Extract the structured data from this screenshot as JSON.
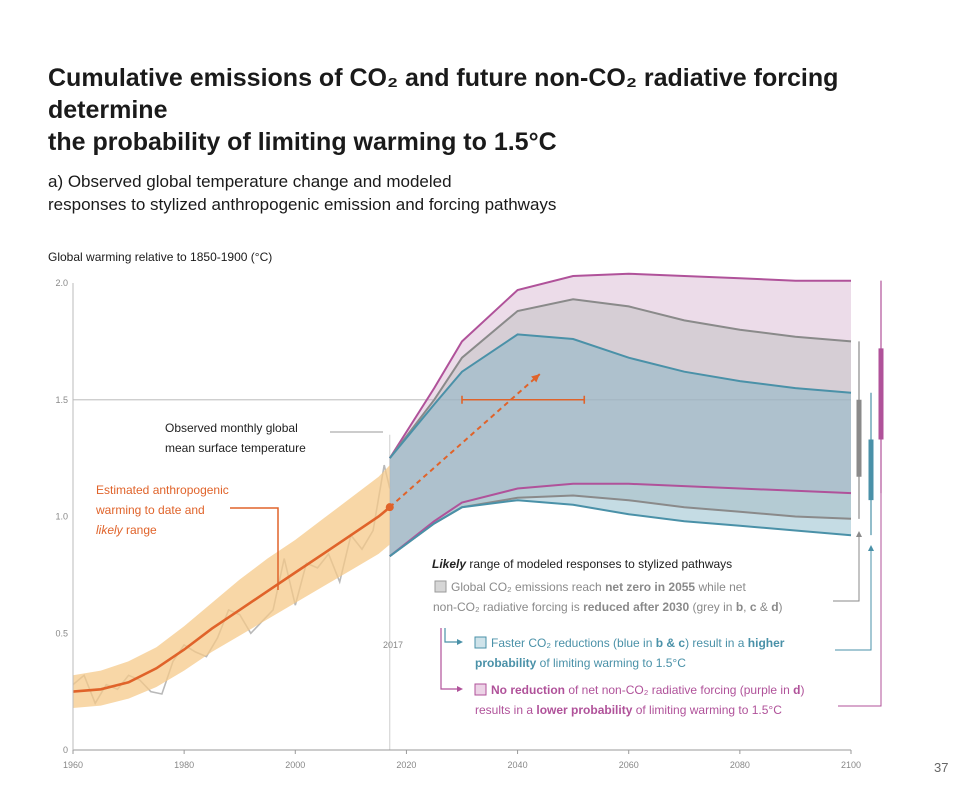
{
  "header": {
    "title_line1": "Cumulative emissions of CO₂ and future non-CO₂ radiative forcing determine",
    "title_line2": "the probability of limiting warming to 1.5°C",
    "subtitle_line1": "a) Observed global temperature change and modeled",
    "subtitle_line2": "responses to stylized anthropogenic emission and forcing pathways",
    "y_axis_title": "Global warming relative to 1850-1900 (°C)"
  },
  "page_number": "37",
  "colors": {
    "orange": "#e0632a",
    "orange_band": "#f6c98a",
    "observed": "#b9b9b9",
    "grey": "#8a8a8a",
    "blue": "#4a91a8",
    "purple": "#b0529a",
    "grey_fill": "#bdbdbd",
    "blue_fill": "#7fb2c4",
    "purple_fill": "#c89ac0"
  },
  "annotations": {
    "observed_line1": "Observed monthly global",
    "observed_line2": "mean surface temperature",
    "anthro_line1": "Estimated anthropogenic",
    "anthro_line2": "warming to date and",
    "anthro_line3_italic": "likely",
    "anthro_line3_rest": " range",
    "year_2017": "2017",
    "likely_range_italic": "Likely",
    "likely_range_rest": " range of modeled responses to stylized pathways",
    "grey_l1_a": "Global CO₂ emissions reach ",
    "grey_l1_b": "net zero in 2055",
    "grey_l1_c": " while net",
    "grey_l2_a": "non-CO₂ radiative forcing is ",
    "grey_l2_b": "reduced after 2030",
    "grey_l2_c": " (grey in ",
    "grey_l2_d": "b",
    "grey_l2_e": ", ",
    "grey_l2_f": "c",
    "grey_l2_g": " & ",
    "grey_l2_h": "d",
    "grey_l2_i": ")",
    "blue_l1_a": "Faster CO₂ reductions (blue in ",
    "blue_l1_b": "b & c",
    "blue_l1_c": ") result in a ",
    "blue_l1_d": "higher",
    "blue_l2_a": "probability",
    "blue_l2_b": " of limiting warming to 1.5°C",
    "purple_l1_a": "No reduction",
    "purple_l1_b": " of net non-CO₂ radiative forcing (purple in ",
    "purple_l1_c": "d",
    "purple_l1_d": ")",
    "purple_l2_a": "results in a ",
    "purple_l2_b": "lower probability",
    "purple_l2_c": " of limiting warming to 1.5°C"
  },
  "chart_data": {
    "type": "area",
    "title": "a) Observed global temperature change and modeled responses to stylized anthropogenic emission and forcing pathways",
    "ylabel": "Global warming relative to 1850-1900 (°C)",
    "xlabel": "",
    "xlim": [
      1960,
      2100
    ],
    "ylim": [
      0,
      2.0
    ],
    "x_ticks": [
      1960,
      1980,
      2000,
      2020,
      2040,
      2060,
      2080,
      2100
    ],
    "y_ticks": [
      0,
      0.5,
      1.0,
      1.5,
      2.0
    ],
    "y_tick_labels": [
      "0",
      "0.5",
      "1.0",
      "1.5",
      "2.0"
    ],
    "grid": false,
    "reference_line": 1.5,
    "marker_year": 2017,
    "series": [
      {
        "name": "Observed monthly global mean surface temperature",
        "kind": "observed",
        "x": [
          1960,
          1962,
          1964,
          1966,
          1968,
          1970,
          1972,
          1974,
          1976,
          1978,
          1980,
          1982,
          1984,
          1986,
          1988,
          1990,
          1992,
          1994,
          1996,
          1998,
          2000,
          2002,
          2004,
          2006,
          2008,
          2010,
          2012,
          2014,
          2016,
          2017
        ],
        "y": [
          0.28,
          0.32,
          0.2,
          0.28,
          0.26,
          0.32,
          0.3,
          0.25,
          0.24,
          0.38,
          0.45,
          0.42,
          0.4,
          0.48,
          0.6,
          0.58,
          0.5,
          0.55,
          0.6,
          0.82,
          0.62,
          0.8,
          0.78,
          0.84,
          0.72,
          0.92,
          0.86,
          0.94,
          1.22,
          1.12
        ]
      },
      {
        "name": "Estimated anthropogenic warming to date and likely range",
        "kind": "anthropogenic",
        "x": [
          1960,
          1965,
          1970,
          1975,
          1980,
          1985,
          1990,
          1995,
          2000,
          2005,
          2010,
          2015,
          2017
        ],
        "y": [
          0.25,
          0.26,
          0.29,
          0.35,
          0.43,
          0.52,
          0.6,
          0.68,
          0.76,
          0.84,
          0.92,
          1.0,
          1.04
        ],
        "lower": [
          0.18,
          0.19,
          0.22,
          0.27,
          0.34,
          0.42,
          0.49,
          0.56,
          0.63,
          0.7,
          0.77,
          0.84,
          0.88
        ],
        "upper": [
          0.32,
          0.34,
          0.38,
          0.44,
          0.53,
          0.63,
          0.73,
          0.82,
          0.9,
          0.99,
          1.08,
          1.17,
          1.22
        ]
      },
      {
        "name": "Global CO₂ emissions reach net zero in 2055 while net non-CO₂ radiative forcing is reduced after 2030",
        "kind": "grey",
        "x": [
          2017,
          2025,
          2030,
          2040,
          2050,
          2060,
          2070,
          2080,
          2090,
          2100
        ],
        "upper": [
          1.25,
          1.5,
          1.68,
          1.88,
          1.93,
          1.9,
          1.84,
          1.8,
          1.77,
          1.75
        ],
        "lower": [
          0.83,
          0.97,
          1.04,
          1.08,
          1.09,
          1.07,
          1.04,
          1.02,
          1.0,
          0.99
        ]
      },
      {
        "name": "Faster CO₂ reductions",
        "kind": "blue",
        "x": [
          2017,
          2025,
          2030,
          2040,
          2050,
          2060,
          2070,
          2080,
          2090,
          2100
        ],
        "upper": [
          1.25,
          1.48,
          1.62,
          1.78,
          1.76,
          1.68,
          1.62,
          1.58,
          1.55,
          1.53
        ],
        "lower": [
          0.83,
          0.97,
          1.04,
          1.07,
          1.05,
          1.01,
          0.98,
          0.96,
          0.94,
          0.92
        ]
      },
      {
        "name": "No reduction of net non-CO₂ radiative forcing",
        "kind": "purple",
        "x": [
          2017,
          2025,
          2030,
          2040,
          2050,
          2060,
          2070,
          2080,
          2090,
          2100
        ],
        "upper": [
          1.25,
          1.55,
          1.75,
          1.97,
          2.03,
          2.04,
          2.03,
          2.02,
          2.01,
          2.01
        ],
        "lower": [
          0.83,
          0.98,
          1.06,
          1.12,
          1.14,
          1.14,
          1.13,
          1.12,
          1.11,
          1.1
        ]
      }
    ],
    "projection_arrow": {
      "from": [
        2017,
        1.04
      ],
      "to": [
        2044,
        1.61
      ]
    },
    "time_range_marker": {
      "from": 2030,
      "to": 2052,
      "y": 1.5
    },
    "range_bars_2100": [
      {
        "kind": "grey",
        "low": 0.99,
        "high": 1.75,
        "likely_low": 1.17,
        "likely_high": 1.5
      },
      {
        "kind": "blue",
        "low": 0.92,
        "high": 1.53,
        "likely_low": 1.07,
        "likely_high": 1.33
      },
      {
        "kind": "purple",
        "low": 1.1,
        "high": 2.01,
        "likely_low": 1.33,
        "likely_high": 1.72
      }
    ]
  }
}
